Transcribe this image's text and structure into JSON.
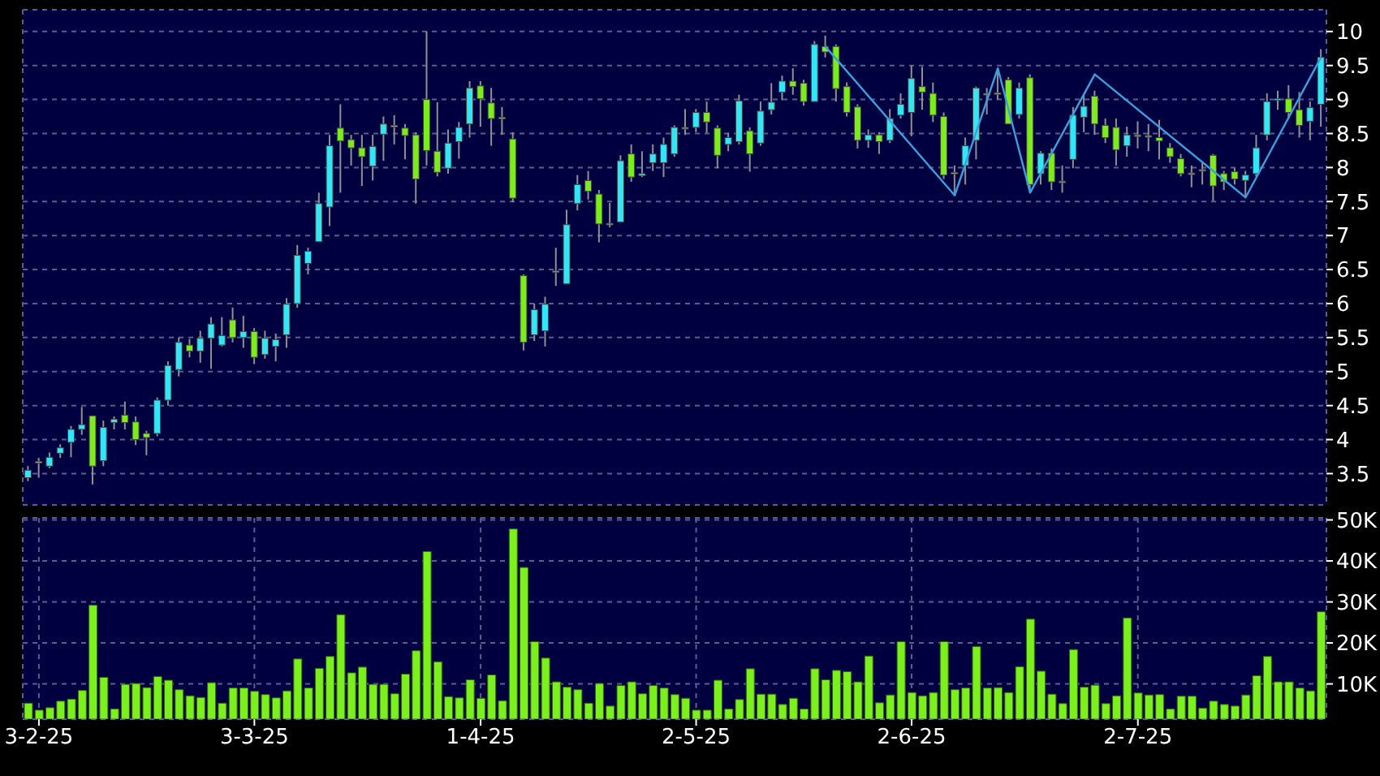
{
  "chart_data": [
    {
      "type": "candlestick",
      "categories": [
        null,
        null,
        null,
        null,
        null,
        null,
        null,
        null,
        null,
        null,
        null,
        null,
        null,
        null,
        null,
        null,
        null,
        null,
        null,
        null,
        null,
        null,
        null,
        null,
        null,
        null,
        null,
        null,
        null,
        null,
        null,
        null,
        null,
        null,
        null,
        null,
        null,
        null,
        null,
        null,
        null,
        null,
        null,
        null,
        null,
        null,
        null,
        null,
        null,
        null,
        null,
        null,
        null,
        null,
        null,
        null,
        null,
        null,
        null,
        null,
        null,
        null,
        null,
        null,
        null,
        null,
        null,
        null,
        null,
        null,
        null,
        null,
        null,
        null,
        null,
        null,
        null,
        null,
        null,
        null,
        null,
        null,
        null,
        null,
        null,
        null,
        null,
        null,
        null,
        null,
        null,
        null,
        null,
        null,
        null,
        null,
        null,
        null,
        null,
        null,
        null,
        null,
        null,
        null,
        null,
        null,
        null,
        null,
        null,
        null,
        null,
        null,
        null,
        null,
        null,
        null,
        null,
        null,
        null,
        null,
        null
      ],
      "ohlc": [
        [
          3.44,
          3.61,
          3.39,
          3.55
        ],
        [
          3.67,
          3.73,
          3.44,
          3.68
        ],
        [
          3.61,
          3.81,
          3.58,
          3.74
        ],
        [
          3.8,
          3.93,
          3.73,
          3.88
        ],
        [
          3.96,
          4.2,
          3.74,
          4.15
        ],
        [
          4.15,
          4.48,
          4.07,
          4.22
        ],
        [
          4.35,
          4.35,
          3.34,
          3.61
        ],
        [
          3.69,
          4.28,
          3.61,
          4.18
        ],
        [
          4.25,
          4.34,
          4.15,
          4.3
        ],
        [
          4.36,
          4.56,
          4.15,
          4.25
        ],
        [
          4.26,
          4.34,
          3.92,
          4.0
        ],
        [
          4.09,
          4.13,
          3.77,
          4.03
        ],
        [
          4.09,
          4.62,
          4.05,
          4.58
        ],
        [
          4.58,
          5.15,
          4.5,
          5.09
        ],
        [
          5.03,
          5.5,
          4.93,
          5.43
        ],
        [
          5.39,
          5.48,
          5.21,
          5.3
        ],
        [
          5.3,
          5.6,
          5.13,
          5.49
        ],
        [
          5.49,
          5.8,
          5.04,
          5.7
        ],
        [
          5.39,
          5.8,
          5.37,
          5.53
        ],
        [
          5.76,
          5.94,
          5.43,
          5.5
        ],
        [
          5.5,
          5.82,
          5.35,
          5.59
        ],
        [
          5.59,
          5.64,
          5.11,
          5.21
        ],
        [
          5.25,
          5.6,
          5.19,
          5.49
        ],
        [
          5.37,
          5.56,
          5.15,
          5.47
        ],
        [
          5.54,
          6.08,
          5.35,
          5.99
        ],
        [
          6.0,
          6.86,
          5.94,
          6.71
        ],
        [
          6.59,
          6.82,
          6.43,
          6.77
        ],
        [
          6.91,
          7.63,
          6.91,
          7.47
        ],
        [
          7.42,
          8.48,
          7.14,
          8.32
        ],
        [
          8.58,
          8.93,
          7.63,
          8.39
        ],
        [
          8.41,
          8.48,
          8.03,
          8.29
        ],
        [
          8.29,
          8.48,
          7.73,
          8.16
        ],
        [
          8.02,
          8.48,
          7.81,
          8.31
        ],
        [
          8.49,
          8.75,
          8.1,
          8.64
        ],
        [
          8.62,
          8.77,
          8.34,
          8.6
        ],
        [
          8.58,
          8.64,
          8.12,
          8.47
        ],
        [
          8.48,
          8.52,
          7.47,
          7.83
        ],
        [
          9.0,
          10.0,
          8.03,
          8.25
        ],
        [
          8.24,
          8.96,
          7.87,
          7.93
        ],
        [
          7.99,
          8.56,
          7.91,
          8.36
        ],
        [
          8.38,
          8.67,
          8.13,
          8.59
        ],
        [
          8.64,
          9.27,
          8.44,
          9.17
        ],
        [
          9.2,
          9.27,
          8.6,
          9.01
        ],
        [
          8.95,
          9.17,
          8.32,
          8.72
        ],
        [
          8.74,
          8.89,
          8.48,
          8.72
        ],
        [
          8.42,
          8.52,
          7.49,
          7.55
        ],
        [
          6.41,
          6.43,
          5.31,
          5.43
        ],
        [
          5.54,
          6.0,
          5.45,
          5.91
        ],
        [
          5.6,
          6.1,
          5.37,
          5.99
        ],
        [
          6.47,
          6.82,
          6.26,
          6.48
        ],
        [
          6.29,
          7.38,
          6.29,
          7.16
        ],
        [
          7.47,
          7.89,
          7.37,
          7.75
        ],
        [
          7.81,
          7.95,
          7.53,
          7.65
        ],
        [
          7.61,
          7.67,
          6.9,
          7.17
        ],
        [
          7.18,
          7.48,
          7.12,
          7.18
        ],
        [
          7.2,
          8.18,
          7.2,
          8.1
        ],
        [
          8.2,
          8.34,
          7.79,
          7.86
        ],
        [
          7.88,
          8.24,
          7.86,
          7.91
        ],
        [
          8.07,
          8.34,
          7.95,
          8.2
        ],
        [
          8.07,
          8.44,
          7.86,
          8.34
        ],
        [
          8.2,
          8.62,
          8.16,
          8.59
        ],
        [
          8.58,
          8.86,
          8.48,
          8.59
        ],
        [
          8.59,
          8.86,
          8.52,
          8.81
        ],
        [
          8.81,
          8.97,
          8.51,
          8.67
        ],
        [
          8.58,
          8.62,
          7.99,
          8.18
        ],
        [
          8.34,
          8.51,
          8.24,
          8.44
        ],
        [
          8.38,
          9.07,
          8.34,
          8.98
        ],
        [
          8.54,
          8.59,
          7.94,
          8.2
        ],
        [
          8.36,
          8.97,
          8.32,
          8.83
        ],
        [
          8.85,
          9.24,
          8.78,
          8.96
        ],
        [
          9.11,
          9.35,
          8.99,
          9.27
        ],
        [
          9.27,
          9.46,
          9.07,
          9.19
        ],
        [
          9.24,
          9.29,
          8.91,
          8.97
        ],
        [
          8.97,
          9.86,
          8.97,
          9.81
        ],
        [
          9.78,
          9.94,
          9.62,
          9.7
        ],
        [
          9.78,
          9.81,
          8.97,
          9.16
        ],
        [
          9.19,
          9.25,
          8.75,
          8.81
        ],
        [
          8.89,
          8.93,
          8.28,
          8.4
        ],
        [
          8.4,
          8.56,
          8.29,
          8.48
        ],
        [
          8.48,
          8.52,
          8.2,
          8.38
        ],
        [
          8.4,
          8.86,
          8.36,
          8.72
        ],
        [
          8.77,
          9.09,
          8.72,
          8.93
        ],
        [
          8.81,
          9.5,
          8.46,
          9.31
        ],
        [
          9.19,
          9.48,
          8.85,
          9.11
        ],
        [
          9.09,
          9.25,
          8.67,
          8.77
        ],
        [
          8.75,
          8.81,
          7.83,
          7.89
        ],
        [
          7.93,
          8.03,
          7.59,
          7.91
        ],
        [
          8.03,
          8.44,
          7.75,
          8.32
        ],
        [
          8.4,
          9.19,
          8.12,
          9.17
        ],
        [
          9.09,
          9.17,
          8.78,
          9.07
        ],
        [
          9.08,
          9.46,
          9.0,
          9.1
        ],
        [
          9.29,
          9.33,
          8.64,
          8.64
        ],
        [
          8.78,
          9.25,
          8.72,
          9.17
        ],
        [
          9.32,
          9.37,
          7.63,
          7.75
        ],
        [
          7.91,
          8.24,
          7.75,
          8.21
        ],
        [
          8.21,
          8.28,
          7.67,
          7.79
        ],
        [
          7.8,
          8.03,
          7.63,
          7.79
        ],
        [
          8.12,
          8.89,
          7.99,
          8.77
        ],
        [
          8.74,
          9.09,
          8.52,
          8.9
        ],
        [
          9.05,
          9.13,
          8.48,
          8.64
        ],
        [
          8.62,
          8.72,
          8.36,
          8.44
        ],
        [
          8.59,
          8.72,
          8.03,
          8.26
        ],
        [
          8.32,
          8.6,
          8.16,
          8.48
        ],
        [
          8.48,
          8.68,
          8.28,
          8.48
        ],
        [
          8.47,
          8.64,
          8.24,
          8.46
        ],
        [
          8.44,
          8.7,
          8.12,
          8.39
        ],
        [
          8.29,
          8.36,
          8.07,
          8.16
        ],
        [
          8.13,
          8.2,
          7.87,
          7.91
        ],
        [
          7.92,
          8.03,
          7.71,
          7.91
        ],
        [
          7.97,
          8.07,
          7.75,
          7.96
        ],
        [
          8.18,
          8.2,
          7.51,
          7.73
        ],
        [
          7.91,
          7.95,
          7.67,
          7.79
        ],
        [
          7.94,
          7.99,
          7.75,
          7.83
        ],
        [
          7.81,
          7.95,
          7.56,
          7.89
        ],
        [
          7.91,
          8.48,
          7.87,
          8.29
        ],
        [
          8.48,
          9.09,
          8.4,
          8.97
        ],
        [
          9.0,
          9.13,
          8.85,
          9.01
        ],
        [
          9.01,
          9.21,
          8.72,
          8.81
        ],
        [
          8.85,
          9.11,
          8.44,
          8.62
        ],
        [
          8.68,
          8.97,
          8.4,
          8.88
        ],
        [
          8.93,
          9.74,
          8.6,
          9.62
        ]
      ],
      "colors": [
        "#33e6f5",
        "#a8a8a8",
        "#33e6f5",
        "#33e6f5",
        "#33e6f5",
        "#33e6f5",
        "#7ced1a",
        "#33e6f5",
        "#33e6f5",
        "#7ced1a",
        "#7ced1a",
        "#7ced1a",
        "#33e6f5",
        "#33e6f5",
        "#33e6f5",
        "#7ced1a",
        "#33e6f5",
        "#33e6f5",
        "#33e6f5",
        "#7ced1a",
        "#33e6f5",
        "#7ced1a",
        "#33e6f5",
        "#33e6f5",
        "#33e6f5",
        "#33e6f5",
        "#33e6f5",
        "#33e6f5",
        "#33e6f5",
        "#7ced1a",
        "#7ced1a",
        "#7ced1a",
        "#33e6f5",
        "#33e6f5",
        "#a8a8a8",
        "#7ced1a",
        "#7ced1a",
        "#7ced1a",
        "#7ced1a",
        "#33e6f5",
        "#33e6f5",
        "#33e6f5",
        "#7ced1a",
        "#7ced1a",
        "#a8a8a8",
        "#7ced1a",
        "#7ced1a",
        "#33e6f5",
        "#33e6f5",
        "#a8a8a8",
        "#33e6f5",
        "#33e6f5",
        "#7ced1a",
        "#7ced1a",
        "#a8a8a8",
        "#33e6f5",
        "#7ced1a",
        "#33e6f5",
        "#33e6f5",
        "#33e6f5",
        "#33e6f5",
        "#a8a8a8",
        "#33e6f5",
        "#7ced1a",
        "#7ced1a",
        "#33e6f5",
        "#33e6f5",
        "#7ced1a",
        "#33e6f5",
        "#33e6f5",
        "#33e6f5",
        "#7ced1a",
        "#7ced1a",
        "#33e6f5",
        "#7ced1a",
        "#7ced1a",
        "#7ced1a",
        "#7ced1a",
        "#33e6f5",
        "#7ced1a",
        "#33e6f5",
        "#33e6f5",
        "#33e6f5",
        "#7ced1a",
        "#7ced1a",
        "#7ced1a",
        "#a8a8a8",
        "#33e6f5",
        "#33e6f5",
        "#a8a8a8",
        "#a8a8a8",
        "#7ced1a",
        "#33e6f5",
        "#7ced1a",
        "#33e6f5",
        "#7ced1a",
        "#a8a8a8",
        "#33e6f5",
        "#33e6f5",
        "#7ced1a",
        "#7ced1a",
        "#7ced1a",
        "#33e6f5",
        "#a8a8a8",
        "#a8a8a8",
        "#7ced1a",
        "#7ced1a",
        "#7ced1a",
        "#a8a8a8",
        "#a8a8a8",
        "#7ced1a",
        "#7ced1a",
        "#7ced1a",
        "#33e6f5",
        "#33e6f5",
        "#33e6f5",
        "#33e6f5",
        "#7ced1a",
        "#7ced1a",
        "#33e6f5",
        "#33e6f5"
      ],
      "series": [
        {
          "type": "line",
          "color": "#3a9fe0",
          "values": [
            null,
            null,
            null,
            null,
            null,
            null,
            null,
            null,
            null,
            null,
            null,
            null,
            null,
            null,
            null,
            null,
            null,
            null,
            null,
            null,
            null,
            null,
            null,
            null,
            null,
            null,
            null,
            null,
            null,
            null,
            null,
            null,
            null,
            null,
            null,
            null,
            null,
            null,
            null,
            null,
            null,
            null,
            null,
            null,
            null,
            null,
            null,
            null,
            null,
            null,
            null,
            null,
            null,
            null,
            null,
            null,
            null,
            null,
            null,
            null,
            null,
            null,
            null,
            null,
            null,
            null,
            null,
            null,
            null,
            null,
            null,
            null,
            null,
            null,
            9.78,
            null,
            null,
            null,
            null,
            null,
            null,
            null,
            null,
            null,
            null,
            null,
            7.59,
            null,
            null,
            null,
            9.46,
            null,
            null,
            7.63,
            null,
            null,
            null,
            null,
            null,
            9.37,
            null,
            null,
            null,
            null,
            null,
            null,
            null,
            null,
            null,
            null,
            null,
            null,
            null,
            7.56,
            null,
            null,
            null,
            null,
            null,
            null,
            9.62
          ]
        }
      ],
      "ylim": [
        3.04,
        10.32
      ],
      "yticks": [
        3.5,
        4,
        4.5,
        5,
        5.5,
        6,
        6.5,
        7,
        7.5,
        8,
        8.5,
        9,
        9.5,
        10
      ],
      "grid": true,
      "tick_labels": "y"
    },
    {
      "type": "bar",
      "categories": [
        null,
        "3-2-25",
        null,
        null,
        null,
        null,
        null,
        null,
        null,
        null,
        null,
        null,
        null,
        null,
        null,
        null,
        null,
        null,
        null,
        null,
        null,
        "3-3-25",
        null,
        null,
        null,
        null,
        null,
        null,
        null,
        null,
        null,
        null,
        null,
        null,
        null,
        null,
        null,
        null,
        null,
        null,
        null,
        null,
        "1-4-25",
        null,
        null,
        null,
        null,
        null,
        null,
        null,
        null,
        null,
        null,
        null,
        null,
        null,
        null,
        null,
        null,
        null,
        null,
        null,
        "2-5-25",
        null,
        null,
        null,
        null,
        null,
        null,
        null,
        null,
        null,
        null,
        null,
        null,
        null,
        null,
        null,
        null,
        null,
        null,
        null,
        "2-6-25",
        null,
        null,
        null,
        null,
        null,
        null,
        null,
        null,
        null,
        null,
        null,
        null,
        null,
        null,
        null,
        null,
        null,
        null,
        null,
        null,
        "2-7-25",
        null,
        null,
        null,
        null,
        null,
        null,
        null,
        null,
        null,
        null,
        null,
        null,
        null,
        null,
        null,
        null,
        null
      ],
      "values": [
        5300,
        3600,
        4200,
        5800,
        6300,
        8400,
        29200,
        11600,
        3900,
        9900,
        10100,
        9100,
        11800,
        10900,
        8600,
        7100,
        6700,
        10300,
        5300,
        9000,
        9000,
        8200,
        7400,
        6600,
        8300,
        16100,
        9000,
        13800,
        16700,
        26900,
        12700,
        14100,
        9900,
        9900,
        7600,
        12400,
        18100,
        42300,
        15400,
        6900,
        6600,
        11000,
        6500,
        12200,
        5900,
        47800,
        38400,
        20300,
        16300,
        10500,
        9200,
        8600,
        5300,
        10100,
        4600,
        9600,
        10500,
        7600,
        9600,
        9000,
        7400,
        6500,
        3600,
        3600,
        10900,
        3900,
        6200,
        13700,
        7500,
        7500,
        5000,
        6500,
        3900,
        13700,
        11000,
        13300,
        13000,
        10500,
        16800,
        5400,
        7300,
        20300,
        7900,
        7100,
        7900,
        20300,
        8600,
        9000,
        19100,
        9000,
        9100,
        7900,
        14200,
        25800,
        13100,
        7500,
        5200,
        18400,
        9200,
        9700,
        5200,
        7100,
        26100,
        7800,
        7300,
        7400,
        3900,
        7000,
        7000,
        4100,
        5800,
        5000,
        4600,
        7300,
        12000,
        16700,
        10500,
        10500,
        9000,
        8300,
        27600
      ],
      "color": "#7cf01c",
      "ylim": [
        1400,
        50500
      ],
      "yticks": [
        {
          "value": 10000,
          "label": "10K"
        },
        {
          "value": 20000,
          "label": "20K"
        },
        {
          "value": 30000,
          "label": "30K"
        },
        {
          "value": 40000,
          "label": "40K"
        },
        {
          "value": 50000,
          "label": "50K"
        }
      ],
      "grid": true
    }
  ]
}
